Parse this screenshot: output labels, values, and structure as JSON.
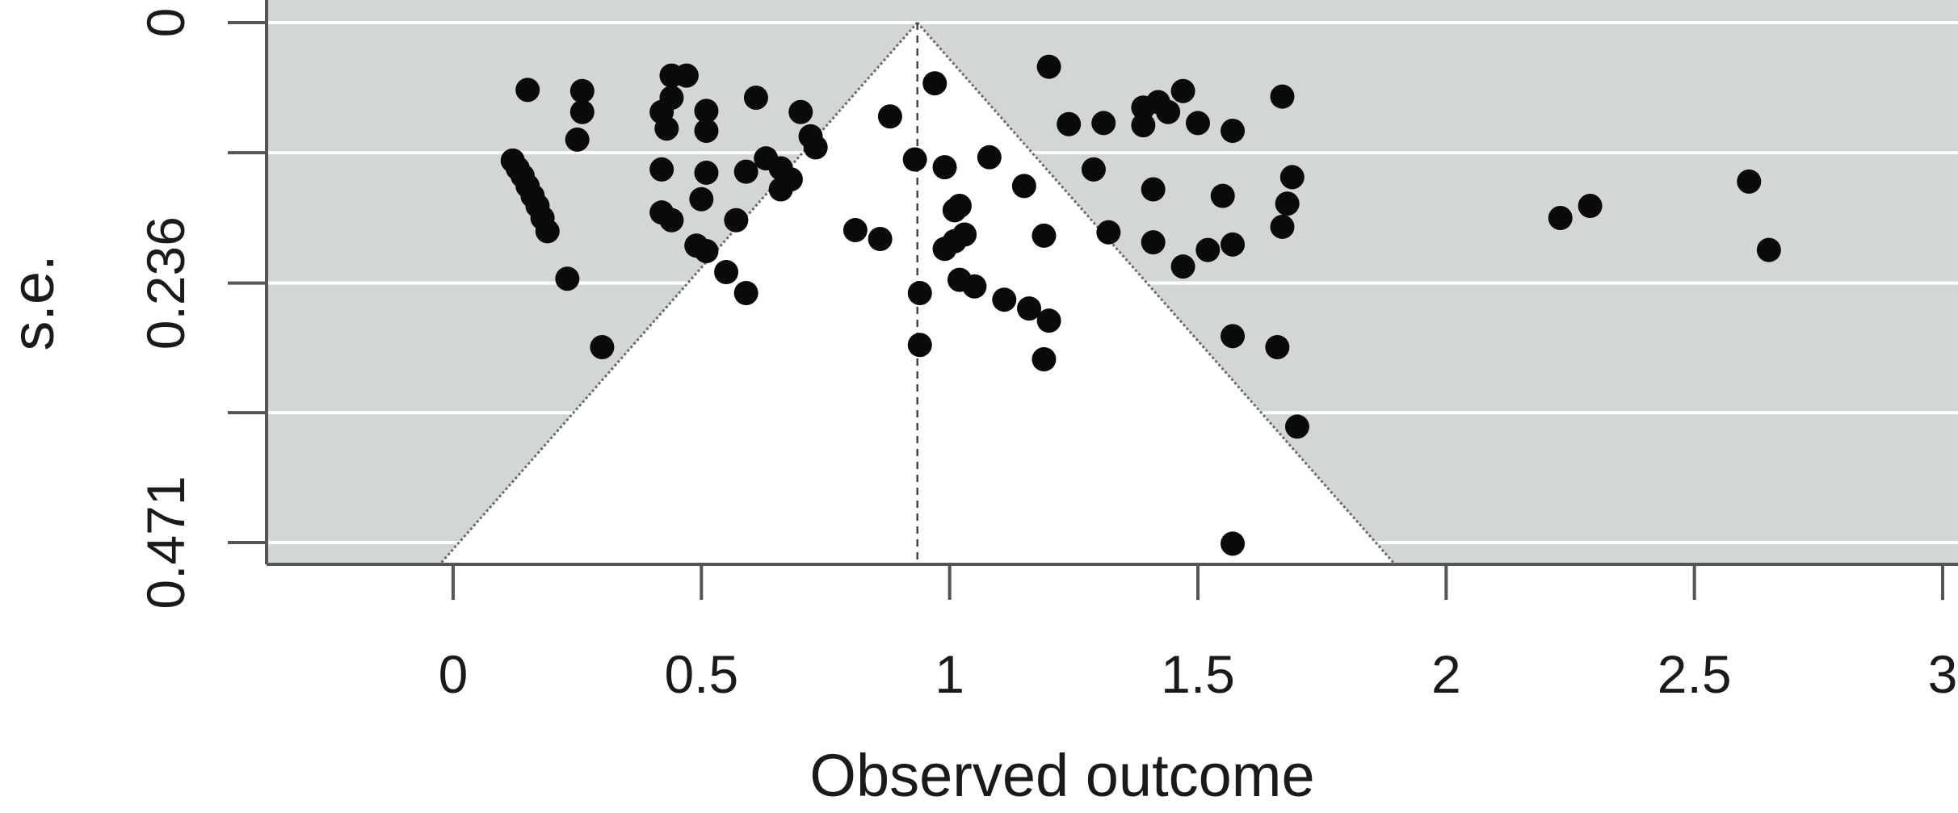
{
  "chart_data": {
    "type": "scatter",
    "subtype": "funnel-plot",
    "title": "",
    "xlabel": "Observed outcome",
    "ylabel": "s.e.",
    "xlim": [
      -0.38,
      3.02
    ],
    "ylim": [
      0,
      0.49
    ],
    "y_reversed": true,
    "x_ticks": [
      0,
      0.5,
      1,
      1.5,
      2,
      2.5,
      3
    ],
    "x_tick_labels": [
      "0",
      "0.5",
      "1",
      "1.5",
      "2",
      "2.5",
      "3"
    ],
    "y_ticks": [
      0,
      0.1178,
      0.236,
      0.3533,
      0.471
    ],
    "y_tick_labels": [
      "0",
      "",
      "0.236",
      "",
      "0.471"
    ],
    "pooled_estimate": 0.935,
    "funnel_z": 1.96,
    "grid": true,
    "colors": {
      "background": "#d2d7d5",
      "funnel": "#ffffff",
      "grid": "#ffffff",
      "points": "#0a0a0a",
      "axis": "#555555",
      "funnel_edge": "#6a6a6a"
    },
    "points": [
      [
        0.15,
        0.061
      ],
      [
        0.26,
        0.062
      ],
      [
        0.26,
        0.081
      ],
      [
        0.25,
        0.106
      ],
      [
        0.12,
        0.125
      ],
      [
        0.13,
        0.132
      ],
      [
        0.14,
        0.139
      ],
      [
        0.15,
        0.148
      ],
      [
        0.16,
        0.157
      ],
      [
        0.17,
        0.166
      ],
      [
        0.18,
        0.177
      ],
      [
        0.19,
        0.189
      ],
      [
        0.23,
        0.232
      ],
      [
        0.3,
        0.294
      ],
      [
        0.44,
        0.048
      ],
      [
        0.47,
        0.048
      ],
      [
        0.42,
        0.081
      ],
      [
        0.44,
        0.068
      ],
      [
        0.43,
        0.096
      ],
      [
        0.51,
        0.08
      ],
      [
        0.51,
        0.098
      ],
      [
        0.42,
        0.133
      ],
      [
        0.51,
        0.136
      ],
      [
        0.5,
        0.16
      ],
      [
        0.42,
        0.172
      ],
      [
        0.44,
        0.179
      ],
      [
        0.57,
        0.179
      ],
      [
        0.49,
        0.202
      ],
      [
        0.51,
        0.207
      ],
      [
        0.55,
        0.226
      ],
      [
        0.59,
        0.245
      ],
      [
        0.61,
        0.068
      ],
      [
        0.7,
        0.081
      ],
      [
        0.73,
        0.113
      ],
      [
        0.72,
        0.103
      ],
      [
        0.63,
        0.123
      ],
      [
        0.66,
        0.132
      ],
      [
        0.59,
        0.135
      ],
      [
        0.68,
        0.142
      ],
      [
        0.66,
        0.151
      ],
      [
        0.88,
        0.085
      ],
      [
        0.81,
        0.188
      ],
      [
        0.86,
        0.196
      ],
      [
        0.97,
        0.055
      ],
      [
        0.93,
        0.124
      ],
      [
        0.99,
        0.131
      ],
      [
        1.08,
        0.122
      ],
      [
        1.02,
        0.166
      ],
      [
        1.15,
        0.148
      ],
      [
        1.01,
        0.17
      ],
      [
        1.03,
        0.192
      ],
      [
        1.01,
        0.198
      ],
      [
        0.99,
        0.205
      ],
      [
        1.19,
        0.193
      ],
      [
        0.94,
        0.245
      ],
      [
        1.02,
        0.233
      ],
      [
        1.05,
        0.239
      ],
      [
        1.11,
        0.251
      ],
      [
        1.16,
        0.259
      ],
      [
        1.2,
        0.27
      ],
      [
        0.94,
        0.292
      ],
      [
        1.19,
        0.305
      ],
      [
        1.2,
        0.04
      ],
      [
        1.24,
        0.092
      ],
      [
        1.31,
        0.091
      ],
      [
        1.29,
        0.133
      ],
      [
        1.32,
        0.19
      ],
      [
        1.39,
        0.077
      ],
      [
        1.42,
        0.072
      ],
      [
        1.44,
        0.081
      ],
      [
        1.39,
        0.093
      ],
      [
        1.47,
        0.062
      ],
      [
        1.5,
        0.091
      ],
      [
        1.57,
        0.098
      ],
      [
        1.41,
        0.151
      ],
      [
        1.41,
        0.199
      ],
      [
        1.47,
        0.221
      ],
      [
        1.52,
        0.206
      ],
      [
        1.55,
        0.157
      ],
      [
        1.57,
        0.201
      ],
      [
        1.57,
        0.284
      ],
      [
        1.67,
        0.067
      ],
      [
        1.69,
        0.14
      ],
      [
        1.68,
        0.164
      ],
      [
        1.67,
        0.185
      ],
      [
        1.66,
        0.294
      ],
      [
        1.7,
        0.366
      ],
      [
        1.57,
        0.472
      ],
      [
        2.23,
        0.177
      ],
      [
        2.29,
        0.166
      ],
      [
        2.61,
        0.144
      ],
      [
        2.65,
        0.206
      ]
    ]
  }
}
